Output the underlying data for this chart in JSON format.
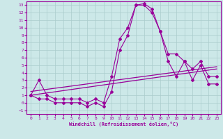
{
  "xlabel": "Windchill (Refroidissement éolien,°C)",
  "background_color": "#cce8e8",
  "grid_color": "#aacccc",
  "line_color": "#990099",
  "hours": [
    0,
    1,
    2,
    3,
    4,
    5,
    6,
    7,
    8,
    9,
    10,
    11,
    12,
    13,
    14,
    15,
    16,
    17,
    18,
    19,
    20,
    21,
    22,
    23
  ],
  "temp": [
    1.0,
    3.0,
    1.0,
    0.5,
    0.5,
    0.5,
    0.5,
    0.0,
    0.5,
    0.0,
    3.5,
    8.5,
    10.0,
    13.0,
    13.2,
    12.5,
    9.5,
    6.5,
    6.5,
    5.5,
    4.5,
    5.5,
    3.5,
    3.5
  ],
  "windchill": [
    1.0,
    0.5,
    0.5,
    0.0,
    0.0,
    0.0,
    0.0,
    -0.5,
    0.0,
    -0.5,
    1.5,
    7.0,
    9.0,
    13.0,
    13.0,
    12.0,
    9.5,
    5.5,
    3.5,
    5.5,
    3.0,
    5.0,
    2.5,
    2.5
  ],
  "trend1_x": [
    0,
    23
  ],
  "trend1_y": [
    1.0,
    4.5
  ],
  "trend2_x": [
    0,
    23
  ],
  "trend2_y": [
    1.5,
    4.8
  ],
  "ylim": [
    -1.5,
    13.5
  ],
  "yticks": [
    -1,
    0,
    1,
    2,
    3,
    4,
    5,
    6,
    7,
    8,
    9,
    10,
    11,
    12,
    13
  ],
  "xticks": [
    0,
    1,
    2,
    3,
    4,
    5,
    6,
    7,
    8,
    9,
    10,
    11,
    12,
    13,
    14,
    15,
    16,
    17,
    18,
    19,
    20,
    21,
    22,
    23
  ]
}
